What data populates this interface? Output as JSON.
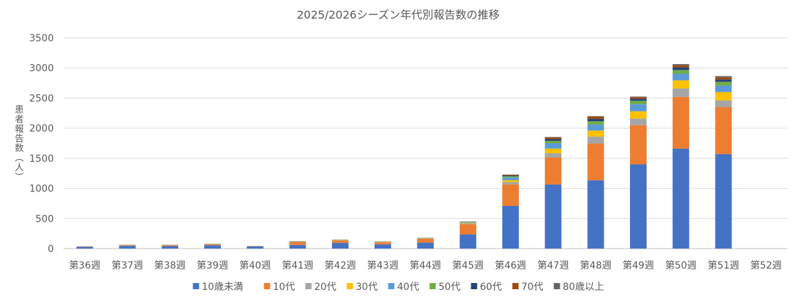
{
  "chart_data": {
    "type": "bar",
    "stacked": true,
    "title": "2025/2026シーズン年代別報告数の推移",
    "xlabel": "",
    "ylabel": "患者報告数（人）",
    "ylim": [
      0,
      3500
    ],
    "yticks": [
      0,
      500,
      1000,
      1500,
      2000,
      2500,
      3000,
      3500
    ],
    "grid": true,
    "legend_position": "bottom",
    "categories": [
      "第36週",
      "第37週",
      "第38週",
      "第39週",
      "第40週",
      "第41週",
      "第42週",
      "第43週",
      "第44週",
      "第45週",
      "第46週",
      "第47週",
      "第48週",
      "第49週",
      "第50週",
      "第51週",
      "第52週"
    ],
    "series": [
      {
        "name": "10歳未満",
        "color": "#4472C4",
        "values": [
          30,
          45,
          40,
          55,
          35,
          60,
          95,
          70,
          100,
          235,
          710,
          1065,
          1135,
          1400,
          1660,
          1570,
          0
        ]
      },
      {
        "name": "10代",
        "color": "#ED7D31",
        "values": [
          5,
          10,
          15,
          15,
          5,
          50,
          40,
          35,
          65,
          170,
          355,
          450,
          610,
          650,
          860,
          780,
          0
        ]
      },
      {
        "name": "20代",
        "color": "#A5A5A5",
        "values": [
          2,
          3,
          3,
          4,
          2,
          5,
          5,
          5,
          5,
          12,
          40,
          70,
          115,
          110,
          140,
          110,
          0
        ]
      },
      {
        "name": "30代",
        "color": "#FFC000",
        "values": [
          1,
          2,
          2,
          2,
          1,
          3,
          3,
          3,
          3,
          10,
          30,
          75,
          100,
          120,
          135,
          140,
          0
        ]
      },
      {
        "name": "40代",
        "color": "#5B9BD5",
        "values": [
          1,
          2,
          2,
          2,
          1,
          3,
          3,
          3,
          3,
          10,
          45,
          90,
          100,
          120,
          110,
          110,
          0
        ]
      },
      {
        "name": "50代",
        "color": "#70AD47",
        "values": [
          1,
          1,
          1,
          1,
          1,
          2,
          2,
          2,
          2,
          6,
          20,
          40,
          55,
          55,
          60,
          60,
          0
        ]
      },
      {
        "name": "60代",
        "color": "#264478",
        "values": [
          0,
          1,
          1,
          1,
          0,
          1,
          1,
          1,
          1,
          3,
          12,
          30,
          40,
          35,
          45,
          40,
          0
        ]
      },
      {
        "name": "70代",
        "color": "#9E480E",
        "values": [
          0,
          1,
          1,
          1,
          0,
          1,
          1,
          1,
          1,
          3,
          12,
          25,
          35,
          25,
          35,
          35,
          0
        ]
      },
      {
        "name": "80歳以上",
        "color": "#636363",
        "values": [
          0,
          0,
          0,
          0,
          0,
          1,
          1,
          1,
          1,
          2,
          5,
          10,
          10,
          10,
          20,
          20,
          0
        ]
      }
    ]
  }
}
